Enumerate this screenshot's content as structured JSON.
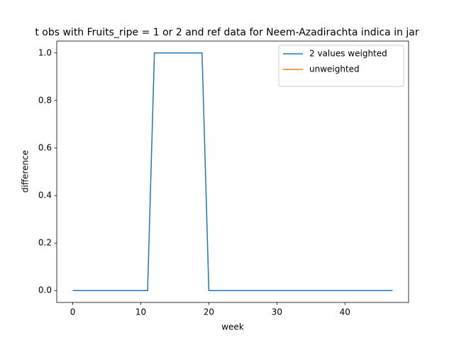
{
  "chart_data": {
    "type": "line",
    "title": "t obs with Fruits_ripe = 1 or 2 and ref data for Neem-Azadirachta indica in jar",
    "xlabel": "week",
    "ylabel": "difference",
    "x": [
      0,
      1,
      2,
      3,
      4,
      5,
      6,
      7,
      8,
      9,
      10,
      11,
      12,
      13,
      14,
      15,
      16,
      17,
      18,
      19,
      20,
      21,
      22,
      23,
      24,
      25,
      26,
      27,
      28,
      29,
      30,
      31,
      32,
      33,
      34,
      35,
      36,
      37,
      38,
      39,
      40,
      41,
      42,
      43,
      44,
      45,
      46,
      47
    ],
    "series": [
      {
        "name": "2 values weighted",
        "color": "#1f77b4",
        "values": [
          0,
          0,
          0,
          0,
          0,
          0,
          0,
          0,
          0,
          0,
          0,
          0,
          1,
          1,
          1,
          1,
          1,
          1,
          1,
          1,
          0,
          0,
          0,
          0,
          0,
          0,
          0,
          0,
          0,
          0,
          0,
          0,
          0,
          0,
          0,
          0,
          0,
          0,
          0,
          0,
          0,
          0,
          0,
          0,
          0,
          0,
          0,
          0
        ]
      },
      {
        "name": "unweighted",
        "color": "#ff7f0e",
        "values": [
          null,
          null,
          null,
          null,
          null,
          null,
          null,
          null,
          null,
          null,
          null,
          null,
          null,
          null,
          null,
          null,
          null,
          null,
          null,
          null,
          null,
          null,
          null,
          null,
          null,
          null,
          null,
          null,
          null,
          null,
          null,
          null,
          null,
          null,
          null,
          null,
          null,
          null,
          null,
          null,
          null,
          null,
          null,
          null,
          null,
          null,
          null,
          null
        ]
      }
    ],
    "xlim": [
      -2.35,
      49.35
    ],
    "ylim": [
      -0.05,
      1.05
    ],
    "xticks": [
      0,
      10,
      20,
      30,
      40
    ],
    "yticks": [
      {
        "value": 0,
        "label": "0.0"
      },
      {
        "value": 0.2,
        "label": "0.2"
      },
      {
        "value": 0.4,
        "label": "0.4"
      },
      {
        "value": 0.6,
        "label": "0.6"
      },
      {
        "value": 0.8,
        "label": "0.8"
      },
      {
        "value": 1,
        "label": "1.0"
      }
    ],
    "legend": "upper right"
  }
}
